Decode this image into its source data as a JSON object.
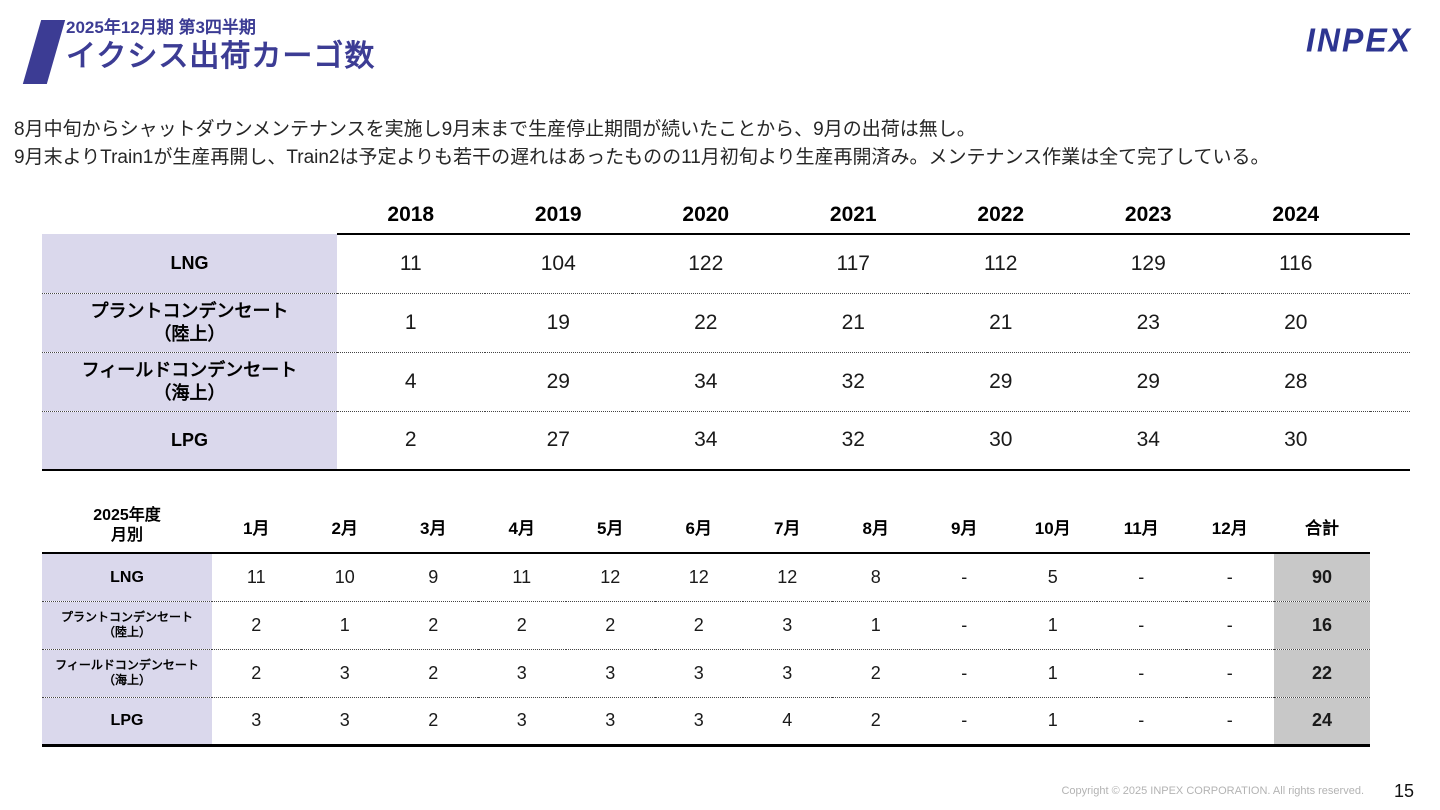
{
  "header": {
    "subtitle": "2025年12月期 第3四半期",
    "title": "イクシス出荷カーゴ数",
    "logo": "INPEX"
  },
  "description": {
    "line1": "8月中旬からシャットダウンメンテナンスを実施し9月末まで生産停止期間が続いたことから、9月の出荷は無し。",
    "line2": "9月末よりTrain1が生産再開し、Train2は予定よりも若干の遅れはあったものの11月初旬より生産再開済み。メンテナンス作業は全て完了している。"
  },
  "colors": {
    "accent": "#3c3c94",
    "logo_navy": "#2d3591",
    "label_bg": "#dad8ec",
    "total_bg": "#c8c8c8"
  },
  "annual_table": {
    "years": [
      "2018",
      "2019",
      "2020",
      "2021",
      "2022",
      "2023",
      "2024"
    ],
    "rows": [
      {
        "label": [
          "LNG"
        ],
        "values": [
          "11",
          "104",
          "122",
          "117",
          "112",
          "129",
          "116"
        ]
      },
      {
        "label": [
          "プラントコンデンセート",
          "（陸上）"
        ],
        "values": [
          "1",
          "19",
          "22",
          "21",
          "21",
          "23",
          "20"
        ]
      },
      {
        "label": [
          "フィールドコンデンセート",
          "（海上）"
        ],
        "values": [
          "4",
          "29",
          "34",
          "32",
          "29",
          "29",
          "28"
        ]
      },
      {
        "label": [
          "LPG"
        ],
        "values": [
          "2",
          "27",
          "34",
          "32",
          "30",
          "34",
          "30"
        ]
      }
    ]
  },
  "monthly_table": {
    "corner": [
      "2025年度",
      "月別"
    ],
    "months": [
      "1月",
      "2月",
      "3月",
      "4月",
      "5月",
      "6月",
      "7月",
      "8月",
      "9月",
      "10月",
      "11月",
      "12月"
    ],
    "total_label": "合計",
    "rows": [
      {
        "label": [
          "LNG"
        ],
        "values": [
          "11",
          "10",
          "9",
          "11",
          "12",
          "12",
          "12",
          "8",
          "-",
          "5",
          "-",
          "-"
        ],
        "total": "90"
      },
      {
        "label": [
          "プラントコンデンセート",
          "（陸上）"
        ],
        "values": [
          "2",
          "1",
          "2",
          "2",
          "2",
          "2",
          "3",
          "1",
          "-",
          "1",
          "-",
          "-"
        ],
        "total": "16"
      },
      {
        "label": [
          "フィールドコンデンセート",
          "（海上）"
        ],
        "values": [
          "2",
          "3",
          "2",
          "3",
          "3",
          "3",
          "3",
          "2",
          "-",
          "1",
          "-",
          "-"
        ],
        "total": "22"
      },
      {
        "label": [
          "LPG"
        ],
        "values": [
          "3",
          "3",
          "2",
          "3",
          "3",
          "3",
          "4",
          "2",
          "-",
          "1",
          "-",
          "-"
        ],
        "total": "24"
      }
    ]
  },
  "footer": {
    "copyright": "Copyright © 2025 INPEX CORPORATION. All rights reserved.",
    "page": "15"
  }
}
